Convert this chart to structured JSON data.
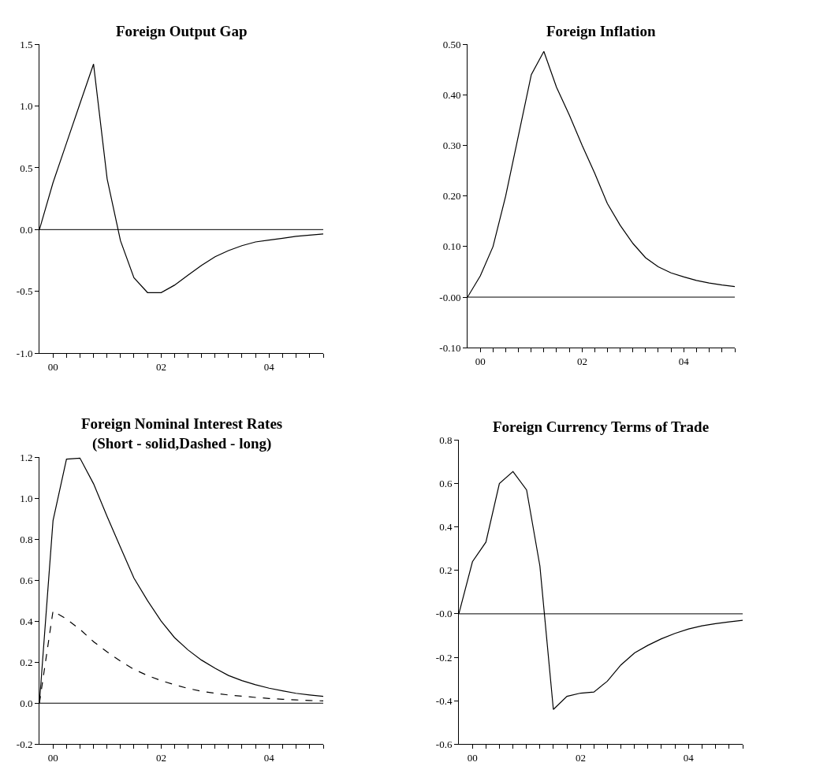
{
  "chart_data": [
    {
      "type": "line",
      "title": "Foreign Output Gap",
      "x": [
        "1999-10",
        "2000-01",
        "2000-04",
        "2000-07",
        "2000-10",
        "2001-01",
        "2001-04",
        "2001-07",
        "2001-10",
        "2002-01",
        "2002-04",
        "2002-07",
        "2002-10",
        "2003-01",
        "2003-04",
        "2003-07",
        "2003-10",
        "2004-01",
        "2004-04",
        "2004-07",
        "2004-10",
        "2005-01"
      ],
      "series": [
        {
          "color": "#000000",
          "line_style": "solid",
          "values": [
            0,
            0.38,
            0.7,
            1.02,
            1.34,
            0.41,
            -0.09,
            -0.39,
            -0.51,
            -0.51,
            -0.45,
            -0.37,
            -0.29,
            -0.22,
            -0.17,
            -0.13,
            -0.1,
            -0.085,
            -0.07,
            -0.055,
            -0.045,
            -0.035
          ]
        }
      ],
      "xlim": [
        "1999-10",
        "2005-01"
      ],
      "xticks": [
        {
          "value": "2000-01",
          "label": "00"
        },
        {
          "value": "2000-04",
          "label": null
        },
        {
          "value": "2000-07",
          "label": null
        },
        {
          "value": "2000-10",
          "label": null
        },
        {
          "value": "2001-01",
          "label": null
        },
        {
          "value": "2001-04",
          "label": null
        },
        {
          "value": "2001-07",
          "label": null
        },
        {
          "value": "2001-10",
          "label": null
        },
        {
          "value": "2002-01",
          "label": "02"
        },
        {
          "value": "2002-04",
          "label": null
        },
        {
          "value": "2002-07",
          "label": null
        },
        {
          "value": "2002-10",
          "label": null
        },
        {
          "value": "2003-01",
          "label": null
        },
        {
          "value": "2003-04",
          "label": null
        },
        {
          "value": "2003-07",
          "label": null
        },
        {
          "value": "2003-10",
          "label": null
        },
        {
          "value": "2004-01",
          "label": "04"
        },
        {
          "value": "2004-04",
          "label": null
        },
        {
          "value": "2004-07",
          "label": null
        },
        {
          "value": "2004-10",
          "label": null
        },
        {
          "value": "2005-01",
          "label": null
        }
      ],
      "ylim": [
        -1.0,
        1.5
      ],
      "yticks": [
        {
          "value": -1.0,
          "label": "-1.0"
        },
        {
          "value": -0.5,
          "label": "-0.5"
        },
        {
          "value": 0,
          "label": "0.0"
        },
        {
          "value": 0.5,
          "label": "0.5"
        },
        {
          "value": 1.0,
          "label": "1.0"
        },
        {
          "value": 1.5,
          "label": "1.5"
        }
      ],
      "ref_lines": [
        {
          "axis": "y",
          "value": 0,
          "color": "#000000"
        }
      ],
      "marker": "none"
    },
    {
      "type": "line",
      "title": "Foreign Inflation",
      "x": [
        "1999-10",
        "2000-01",
        "2000-04",
        "2000-07",
        "2000-10",
        "2001-01",
        "2001-04",
        "2001-07",
        "2001-10",
        "2002-01",
        "2002-04",
        "2002-07",
        "2002-10",
        "2003-01",
        "2003-04",
        "2003-07",
        "2003-10",
        "2004-01",
        "2004-04",
        "2004-07",
        "2004-10",
        "2005-01"
      ],
      "series": [
        {
          "color": "#000000",
          "line_style": "solid",
          "values": [
            0,
            0.042,
            0.1,
            0.2,
            0.32,
            0.44,
            0.486,
            0.415,
            0.36,
            0.3,
            0.245,
            0.185,
            0.142,
            0.106,
            0.078,
            0.06,
            0.048,
            0.04,
            0.033,
            0.028,
            0.024,
            0.021
          ]
        }
      ],
      "xlim": [
        "1999-10",
        "2005-01"
      ],
      "xticks": [
        {
          "value": "2000-01",
          "label": "00"
        },
        {
          "value": "2000-04",
          "label": null
        },
        {
          "value": "2000-07",
          "label": null
        },
        {
          "value": "2000-10",
          "label": null
        },
        {
          "value": "2001-01",
          "label": null
        },
        {
          "value": "2001-04",
          "label": null
        },
        {
          "value": "2001-07",
          "label": null
        },
        {
          "value": "2001-10",
          "label": null
        },
        {
          "value": "2002-01",
          "label": "02"
        },
        {
          "value": "2002-04",
          "label": null
        },
        {
          "value": "2002-07",
          "label": null
        },
        {
          "value": "2002-10",
          "label": null
        },
        {
          "value": "2003-01",
          "label": null
        },
        {
          "value": "2003-04",
          "label": null
        },
        {
          "value": "2003-07",
          "label": null
        },
        {
          "value": "2003-10",
          "label": null
        },
        {
          "value": "2004-01",
          "label": "04"
        },
        {
          "value": "2004-04",
          "label": null
        },
        {
          "value": "2004-07",
          "label": null
        },
        {
          "value": "2004-10",
          "label": null
        },
        {
          "value": "2005-01",
          "label": null
        }
      ],
      "ylim": [
        -0.1,
        0.5
      ],
      "yticks": [
        {
          "value": -0.1,
          "label": "-0.10"
        },
        {
          "value": 0,
          "label": "-0.00"
        },
        {
          "value": 0.1,
          "label": "0.10"
        },
        {
          "value": 0.2,
          "label": "0.20"
        },
        {
          "value": 0.3,
          "label": "0.30"
        },
        {
          "value": 0.4,
          "label": "0.40"
        },
        {
          "value": 0.5,
          "label": "0.50"
        }
      ],
      "ref_lines": [
        {
          "axis": "y",
          "value": 0,
          "color": "#000000"
        }
      ],
      "marker": "none"
    },
    {
      "type": "line",
      "title": "Foreign Nominal Interest Rates\n(Short - solid,Dashed - long)",
      "x": [
        "1999-10",
        "2000-01",
        "2000-04",
        "2000-07",
        "2000-10",
        "2001-01",
        "2001-04",
        "2001-07",
        "2001-10",
        "2002-01",
        "2002-04",
        "2002-07",
        "2002-10",
        "2003-01",
        "2003-04",
        "2003-07",
        "2003-10",
        "2004-01",
        "2004-04",
        "2004-07",
        "2004-10",
        "2005-01"
      ],
      "series": [
        {
          "color": "#000000",
          "line_style": "solid",
          "values": [
            0,
            0.89,
            1.19,
            1.195,
            1.07,
            0.91,
            0.76,
            0.61,
            0.5,
            0.4,
            0.32,
            0.26,
            0.21,
            0.17,
            0.135,
            0.11,
            0.09,
            0.073,
            0.06,
            0.048,
            0.04,
            0.033
          ]
        },
        {
          "color": "#000000",
          "line_style": "dashed",
          "values": [
            0,
            0.45,
            0.41,
            0.36,
            0.3,
            0.25,
            0.205,
            0.165,
            0.135,
            0.11,
            0.09,
            0.072,
            0.058,
            0.048,
            0.04,
            0.034,
            0.028,
            0.023,
            0.019,
            0.016,
            0.013,
            0.011
          ]
        }
      ],
      "xlim": [
        "1999-10",
        "2005-01"
      ],
      "xticks": [
        {
          "value": "2000-01",
          "label": "00"
        },
        {
          "value": "2000-04",
          "label": null
        },
        {
          "value": "2000-07",
          "label": null
        },
        {
          "value": "2000-10",
          "label": null
        },
        {
          "value": "2001-01",
          "label": null
        },
        {
          "value": "2001-04",
          "label": null
        },
        {
          "value": "2001-07",
          "label": null
        },
        {
          "value": "2001-10",
          "label": null
        },
        {
          "value": "2002-01",
          "label": "02"
        },
        {
          "value": "2002-04",
          "label": null
        },
        {
          "value": "2002-07",
          "label": null
        },
        {
          "value": "2002-10",
          "label": null
        },
        {
          "value": "2003-01",
          "label": null
        },
        {
          "value": "2003-04",
          "label": null
        },
        {
          "value": "2003-07",
          "label": null
        },
        {
          "value": "2003-10",
          "label": null
        },
        {
          "value": "2004-01",
          "label": "04"
        },
        {
          "value": "2004-04",
          "label": null
        },
        {
          "value": "2004-07",
          "label": null
        },
        {
          "value": "2004-10",
          "label": null
        },
        {
          "value": "2005-01",
          "label": null
        }
      ],
      "ylim": [
        -0.2,
        1.2
      ],
      "yticks": [
        {
          "value": -0.2,
          "label": "-0.2"
        },
        {
          "value": 0,
          "label": "0.0"
        },
        {
          "value": 0.2,
          "label": "0.2"
        },
        {
          "value": 0.4,
          "label": "0.4"
        },
        {
          "value": 0.6,
          "label": "0.6"
        },
        {
          "value": 0.8,
          "label": "0.8"
        },
        {
          "value": 1.0,
          "label": "1.0"
        },
        {
          "value": 1.2,
          "label": "1.2"
        }
      ],
      "ref_lines": [
        {
          "axis": "y",
          "value": 0,
          "color": "#000000"
        }
      ],
      "marker": "none"
    },
    {
      "type": "line",
      "title": "Foreign Currency Terms of Trade",
      "x": [
        "1999-10",
        "2000-01",
        "2000-04",
        "2000-07",
        "2000-10",
        "2001-01",
        "2001-04",
        "2001-07",
        "2001-10",
        "2002-01",
        "2002-04",
        "2002-07",
        "2002-10",
        "2003-01",
        "2003-04",
        "2003-07",
        "2003-10",
        "2004-01",
        "2004-04",
        "2004-07",
        "2004-10",
        "2005-01"
      ],
      "series": [
        {
          "color": "#000000",
          "line_style": "solid",
          "values": [
            0,
            0.24,
            0.33,
            0.6,
            0.655,
            0.57,
            0.22,
            -0.44,
            -0.38,
            -0.365,
            -0.36,
            -0.31,
            -0.235,
            -0.18,
            -0.145,
            -0.115,
            -0.09,
            -0.07,
            -0.055,
            -0.045,
            -0.037,
            -0.03
          ]
        }
      ],
      "xlim": [
        "1999-10",
        "2005-01"
      ],
      "xticks": [
        {
          "value": "2000-01",
          "label": "00"
        },
        {
          "value": "2000-04",
          "label": null
        },
        {
          "value": "2000-07",
          "label": null
        },
        {
          "value": "2000-10",
          "label": null
        },
        {
          "value": "2001-01",
          "label": null
        },
        {
          "value": "2001-04",
          "label": null
        },
        {
          "value": "2001-07",
          "label": null
        },
        {
          "value": "2001-10",
          "label": null
        },
        {
          "value": "2002-01",
          "label": "02"
        },
        {
          "value": "2002-04",
          "label": null
        },
        {
          "value": "2002-07",
          "label": null
        },
        {
          "value": "2002-10",
          "label": null
        },
        {
          "value": "2003-01",
          "label": null
        },
        {
          "value": "2003-04",
          "label": null
        },
        {
          "value": "2003-07",
          "label": null
        },
        {
          "value": "2003-10",
          "label": null
        },
        {
          "value": "2004-01",
          "label": "04"
        },
        {
          "value": "2004-04",
          "label": null
        },
        {
          "value": "2004-07",
          "label": null
        },
        {
          "value": "2004-10",
          "label": null
        },
        {
          "value": "2005-01",
          "label": null
        }
      ],
      "ylim": [
        -0.6,
        0.8
      ],
      "yticks": [
        {
          "value": -0.6,
          "label": "-0.6"
        },
        {
          "value": -0.4,
          "label": "-0.4"
        },
        {
          "value": -0.2,
          "label": "-0.2"
        },
        {
          "value": 0,
          "label": "-0.0"
        },
        {
          "value": 0.2,
          "label": "0.2"
        },
        {
          "value": 0.4,
          "label": "0.4"
        },
        {
          "value": 0.6,
          "label": "0.6"
        },
        {
          "value": 0.8,
          "label": "0.8"
        }
      ],
      "ref_lines": [
        {
          "axis": "y",
          "value": 0,
          "color": "#000000"
        }
      ],
      "marker": "none"
    }
  ]
}
